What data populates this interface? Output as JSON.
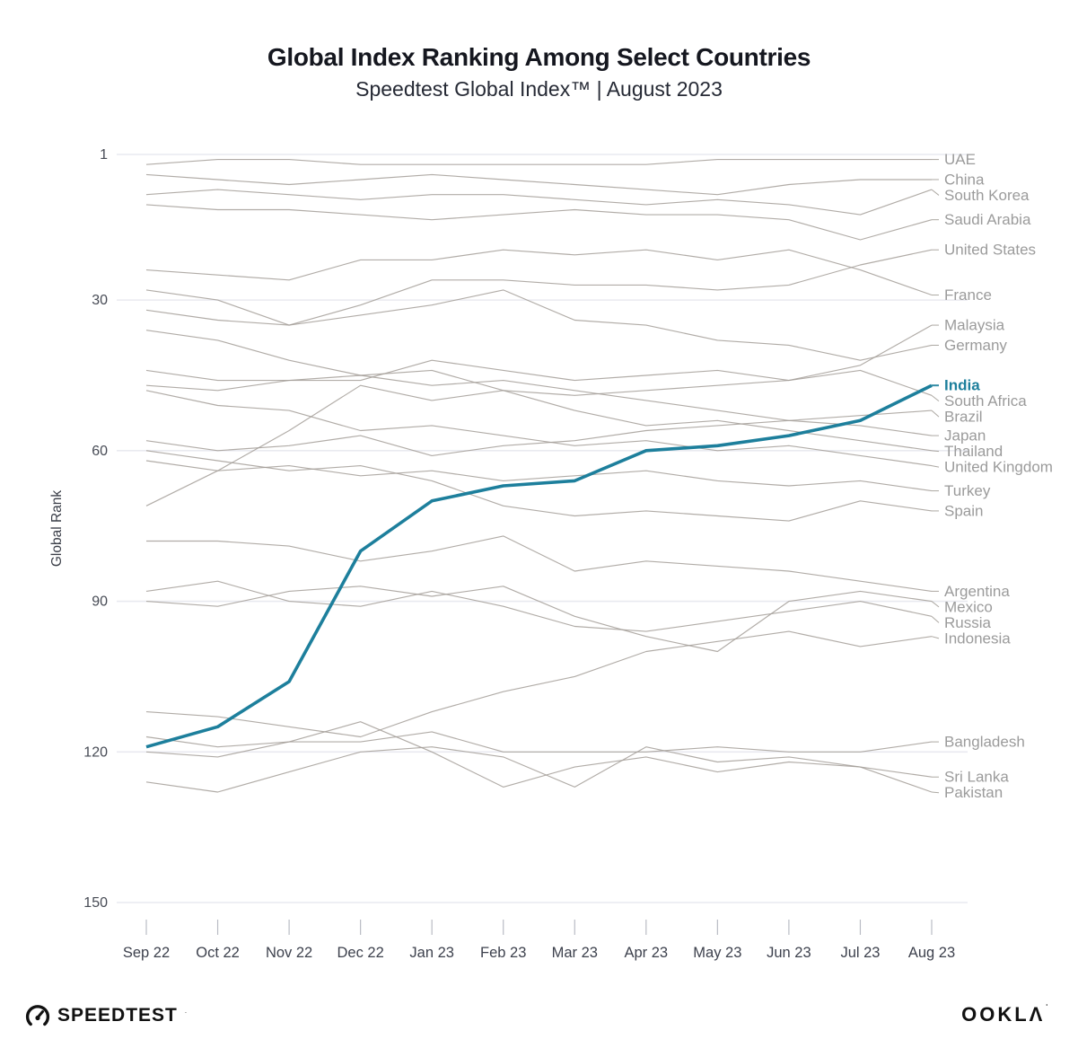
{
  "header": {
    "title": "Global Index Ranking Among Select Countries",
    "subtitle": "Speedtest Global Index™ | August 2023"
  },
  "chart_data": {
    "type": "line",
    "title": "Global Index Ranking Among Select Countries",
    "subtitle": "Speedtest Global Index™ | August 2023",
    "ylabel": "Global Rank",
    "xlabel": "",
    "y_ticks": [
      1,
      30,
      60,
      90,
      120,
      150
    ],
    "ylim": [
      1,
      150
    ],
    "y_inverted": true,
    "grid": "horizontal",
    "legend_position": "right-edge-labels",
    "categories": [
      "Sep 22",
      "Oct 22",
      "Nov 22",
      "Dec 22",
      "Jan 23",
      "Feb 23",
      "Mar 23",
      "Apr 23",
      "May 23",
      "Jun 23",
      "Jul 23",
      "Aug 23"
    ],
    "colors": {
      "highlight_line": "#1d7f9c",
      "gray_line": "#a39e98",
      "gridline": "#e9eaf0",
      "axis_tick": "#b9bcc4",
      "label_gray": "#9b9b9b",
      "axis_text": "#474b55"
    },
    "series": [
      {
        "name": "UAE",
        "highlight": false,
        "values": [
          3,
          2,
          2,
          3,
          3,
          3,
          3,
          3,
          2,
          2,
          2,
          2
        ]
      },
      {
        "name": "China",
        "highlight": false,
        "values": [
          5,
          6,
          7,
          6,
          5,
          6,
          7,
          8,
          9,
          7,
          6,
          6
        ]
      },
      {
        "name": "South Korea",
        "highlight": false,
        "values": [
          9,
          8,
          9,
          10,
          9,
          9,
          10,
          11,
          10,
          11,
          13,
          8
        ]
      },
      {
        "name": "Saudi Arabia",
        "highlight": false,
        "values": [
          11,
          12,
          12,
          13,
          14,
          13,
          12,
          13,
          13,
          14,
          18,
          14
        ]
      },
      {
        "name": "United States",
        "highlight": false,
        "values": [
          28,
          30,
          35,
          31,
          26,
          26,
          27,
          27,
          28,
          27,
          23,
          20
        ]
      },
      {
        "name": "France",
        "highlight": false,
        "values": [
          24,
          25,
          26,
          22,
          22,
          20,
          21,
          20,
          22,
          20,
          24,
          29
        ]
      },
      {
        "name": "Malaysia",
        "highlight": false,
        "values": [
          44,
          46,
          46,
          46,
          42,
          44,
          46,
          45,
          44,
          46,
          43,
          35
        ]
      },
      {
        "name": "Germany",
        "highlight": false,
        "values": [
          32,
          34,
          35,
          33,
          31,
          28,
          34,
          35,
          38,
          39,
          42,
          39
        ]
      },
      {
        "name": "India",
        "highlight": true,
        "values": [
          119,
          115,
          106,
          80,
          70,
          67,
          66,
          60,
          59,
          57,
          54,
          47
        ]
      },
      {
        "name": "South Africa",
        "highlight": false,
        "values": [
          71,
          64,
          56,
          47,
          50,
          48,
          49,
          48,
          47,
          46,
          44,
          49
        ]
      },
      {
        "name": "Brazil",
        "highlight": false,
        "values": [
          58,
          60,
          59,
          57,
          61,
          59,
          58,
          56,
          55,
          54,
          53,
          52
        ]
      },
      {
        "name": "Japan",
        "highlight": false,
        "values": [
          47,
          48,
          46,
          45,
          47,
          46,
          48,
          50,
          52,
          54,
          55,
          57
        ]
      },
      {
        "name": "Thailand",
        "highlight": false,
        "values": [
          36,
          38,
          42,
          45,
          44,
          48,
          52,
          55,
          54,
          56,
          58,
          60
        ]
      },
      {
        "name": "United Kingdom",
        "highlight": false,
        "values": [
          48,
          51,
          52,
          56,
          55,
          57,
          59,
          58,
          60,
          59,
          61,
          63
        ]
      },
      {
        "name": "Turkey",
        "highlight": false,
        "values": [
          62,
          64,
          63,
          65,
          64,
          66,
          65,
          64,
          66,
          67,
          66,
          68
        ]
      },
      {
        "name": "Spain",
        "highlight": false,
        "values": [
          60,
          62,
          64,
          63,
          66,
          71,
          73,
          72,
          73,
          74,
          70,
          72
        ]
      },
      {
        "name": "Argentina",
        "highlight": false,
        "values": [
          78,
          78,
          79,
          82,
          80,
          77,
          84,
          82,
          83,
          84,
          86,
          88
        ]
      },
      {
        "name": "Mexico",
        "highlight": false,
        "values": [
          90,
          91,
          88,
          87,
          89,
          87,
          93,
          97,
          100,
          90,
          88,
          90
        ]
      },
      {
        "name": "Russia",
        "highlight": false,
        "values": [
          88,
          86,
          90,
          91,
          88,
          91,
          95,
          96,
          94,
          92,
          90,
          93
        ]
      },
      {
        "name": "Indonesia",
        "highlight": false,
        "values": [
          112,
          113,
          115,
          117,
          112,
          108,
          105,
          100,
          98,
          96,
          99,
          97
        ]
      },
      {
        "name": "Bangladesh",
        "highlight": false,
        "values": [
          120,
          121,
          118,
          118,
          116,
          120,
          120,
          120,
          119,
          120,
          120,
          118
        ]
      },
      {
        "name": "Sri Lanka",
        "highlight": false,
        "values": [
          117,
          119,
          118,
          114,
          120,
          127,
          123,
          121,
          124,
          122,
          123,
          125
        ]
      },
      {
        "name": "Pakistan",
        "highlight": false,
        "values": [
          126,
          128,
          124,
          120,
          119,
          121,
          127,
          119,
          122,
          121,
          123,
          128
        ]
      }
    ]
  },
  "footer": {
    "speedtest_label": "SPEEDTEST",
    "ookla_label": "OOKLΛ"
  }
}
